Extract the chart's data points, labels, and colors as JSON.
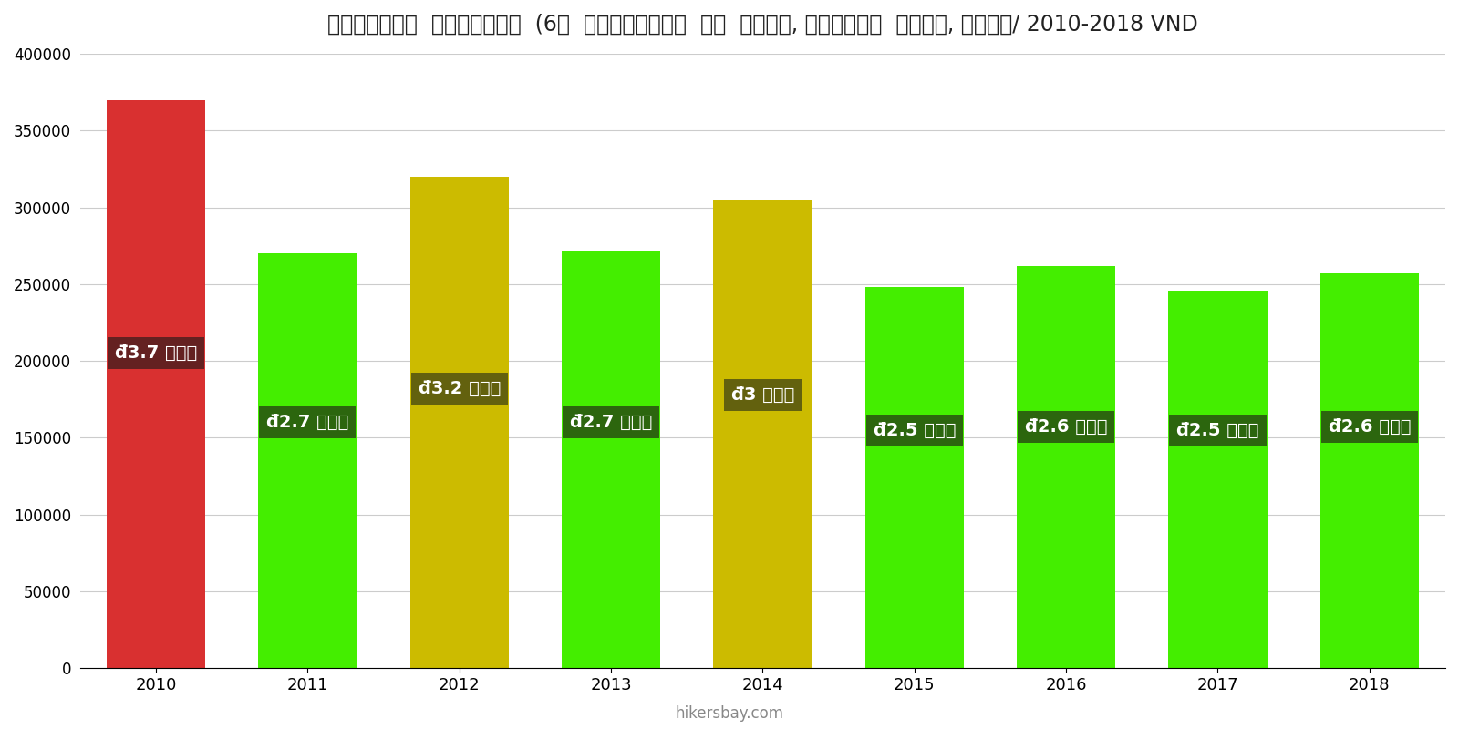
{
  "years": [
    2010,
    2011,
    2012,
    2013,
    2014,
    2015,
    2016,
    2017,
    2018
  ],
  "values": [
    370000,
    270000,
    320000,
    272000,
    305000,
    248000,
    262000,
    246000,
    257000
  ],
  "bar_colors": [
    "#d93030",
    "#44ee00",
    "#ccbb00",
    "#44ee00",
    "#ccbb00",
    "#44ee00",
    "#44ee00",
    "#44ee00",
    "#44ee00"
  ],
  "labels": [
    "đ3.7 लाख",
    "đ2.7 लाख",
    "đ3.2 लाख",
    "đ2.7 लाख",
    "đ3 लाख",
    "đ2.5 लाख",
    "đ2.6 लाख",
    "đ2.5 लाख",
    "đ2.6 लाख"
  ],
  "label_y_positions": [
    205000,
    160000,
    182000,
    160000,
    178000,
    155000,
    157000,
    155000,
    157000
  ],
  "title": "वियतनाम  इंटरनेट  (6०  एमबीपीएस  या  अधिक, असीमित  डेटा, केबल/ 2010-2018 VND",
  "ylim": [
    0,
    400000
  ],
  "yticks": [
    0,
    50000,
    100000,
    150000,
    200000,
    250000,
    300000,
    350000,
    400000
  ],
  "background_color": "#ffffff",
  "label_bg_colors": [
    "#5a2020",
    "#2a5a10",
    "#5a5a10",
    "#2a5a10",
    "#5a5a10",
    "#2a5a10",
    "#2a5a10",
    "#2a5a10",
    "#2a5a10"
  ],
  "label_text_color": "#ffffff",
  "watermark": "hikersbay.com"
}
